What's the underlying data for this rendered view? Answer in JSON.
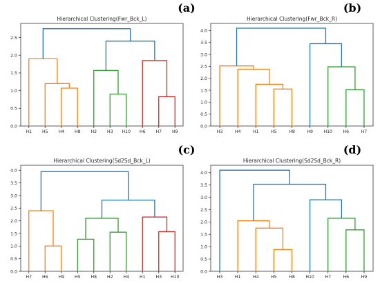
{
  "panel_labels": [
    "(a)",
    "(b)",
    "(c)",
    "(d)"
  ],
  "colors": {
    "root": "#1f77b4",
    "orange": "#ff7f0e",
    "green": "#2ca02c",
    "red": "#d62728"
  },
  "chart_data": [
    {
      "type": "dendrogram",
      "title": "Hierarchical Clustering(Fwr_Bck_L)",
      "ylim": [
        0,
        2.9
      ],
      "yticks": [
        "0.0",
        "0.5",
        "1.0",
        "1.5",
        "2.0",
        "2.5"
      ],
      "leaves": [
        "H1",
        "H5",
        "H4",
        "H8",
        "H2",
        "H3",
        "H10",
        "H6",
        "H7",
        "H9"
      ],
      "links": [
        {
          "a": 2,
          "b": 3,
          "h": 1.07,
          "color": "orange"
        },
        {
          "a": 1,
          "b": 10,
          "h": 1.2,
          "color": "orange"
        },
        {
          "a": 0,
          "b": 11,
          "h": 1.9,
          "color": "orange"
        },
        {
          "a": 5,
          "b": 6,
          "h": 0.9,
          "color": "green"
        },
        {
          "a": 4,
          "b": 13,
          "h": 1.57,
          "color": "green"
        },
        {
          "a": 8,
          "b": 9,
          "h": 0.83,
          "color": "red"
        },
        {
          "a": 7,
          "b": 15,
          "h": 1.85,
          "color": "red"
        },
        {
          "a": 14,
          "b": 16,
          "h": 2.4,
          "color": "root"
        },
        {
          "a": 12,
          "b": 17,
          "h": 2.75,
          "color": "root"
        }
      ]
    },
    {
      "type": "dendrogram",
      "title": "Hierarchical Clustering(Fwr_Bck_R)",
      "ylim": [
        0,
        4.3
      ],
      "yticks": [
        "0.0",
        "0.5",
        "1.0",
        "1.5",
        "2.0",
        "2.5",
        "3.0",
        "3.5",
        "4.0"
      ],
      "leaves": [
        "H3",
        "H4",
        "H1",
        "H5",
        "H8",
        "H9",
        "H10",
        "H6",
        "H7"
      ],
      "links": [
        {
          "a": 3,
          "b": 4,
          "h": 1.55,
          "color": "orange"
        },
        {
          "a": 2,
          "b": 9,
          "h": 1.75,
          "color": "orange"
        },
        {
          "a": 1,
          "b": 10,
          "h": 2.38,
          "color": "orange"
        },
        {
          "a": 0,
          "b": 11,
          "h": 2.52,
          "color": "orange"
        },
        {
          "a": 7,
          "b": 8,
          "h": 1.52,
          "color": "green"
        },
        {
          "a": 6,
          "b": 13,
          "h": 2.48,
          "color": "green"
        },
        {
          "a": 5,
          "b": 14,
          "h": 3.45,
          "color": "root"
        },
        {
          "a": 12,
          "b": 15,
          "h": 4.1,
          "color": "root"
        }
      ]
    },
    {
      "type": "dendrogram",
      "title": "Hierarchical Clustering(Sd2Sd_Bck_L)",
      "ylim": [
        0,
        4.2
      ],
      "yticks": [
        "0.0",
        "0.5",
        "1.0",
        "1.5",
        "2.0",
        "2.5",
        "3.0",
        "3.5",
        "4.0"
      ],
      "leaves": [
        "H7",
        "H6",
        "H9",
        "H5",
        "H8",
        "H2",
        "H4",
        "H1",
        "H3",
        "H10"
      ],
      "links": [
        {
          "a": 1,
          "b": 2,
          "h": 1.0,
          "color": "orange"
        },
        {
          "a": 0,
          "b": 10,
          "h": 2.4,
          "color": "orange"
        },
        {
          "a": 3,
          "b": 4,
          "h": 1.27,
          "color": "green"
        },
        {
          "a": 5,
          "b": 6,
          "h": 1.55,
          "color": "green"
        },
        {
          "a": 12,
          "b": 13,
          "h": 2.1,
          "color": "green"
        },
        {
          "a": 8,
          "b": 9,
          "h": 1.57,
          "color": "red"
        },
        {
          "a": 7,
          "b": 15,
          "h": 2.15,
          "color": "red"
        },
        {
          "a": 14,
          "b": 16,
          "h": 2.82,
          "color": "root"
        },
        {
          "a": 11,
          "b": 17,
          "h": 3.95,
          "color": "root"
        }
      ]
    },
    {
      "type": "dendrogram",
      "title": "Hierarchical Clustering(Sd2Sd_Bck_R)",
      "ylim": [
        0,
        4.3
      ],
      "yticks": [
        "0.0",
        "0.5",
        "1.0",
        "1.5",
        "2.0",
        "2.5",
        "3.0",
        "3.5",
        "4.0"
      ],
      "leaves": [
        "H3",
        "H1",
        "H4",
        "H5",
        "H8",
        "H10",
        "H7",
        "H6",
        "H9"
      ],
      "links": [
        {
          "a": 3,
          "b": 4,
          "h": 0.88,
          "color": "orange"
        },
        {
          "a": 2,
          "b": 9,
          "h": 1.75,
          "color": "orange"
        },
        {
          "a": 1,
          "b": 10,
          "h": 2.05,
          "color": "orange"
        },
        {
          "a": 7,
          "b": 8,
          "h": 1.68,
          "color": "green"
        },
        {
          "a": 6,
          "b": 12,
          "h": 2.15,
          "color": "green"
        },
        {
          "a": 5,
          "b": 13,
          "h": 2.9,
          "color": "root"
        },
        {
          "a": 11,
          "b": 14,
          "h": 3.53,
          "color": "root"
        },
        {
          "a": 0,
          "b": 15,
          "h": 4.1,
          "color": "root"
        }
      ]
    }
  ]
}
